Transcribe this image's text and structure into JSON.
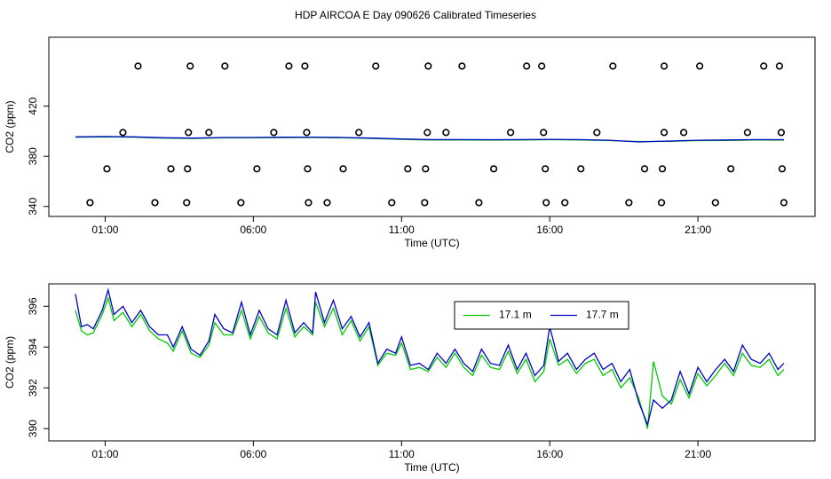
{
  "chart_data": [
    {
      "type": "line",
      "title": "HDP AIRCOA E  Day 090626  Calibrated Timeseries",
      "xlabel": "Time (UTC)",
      "ylabel": "CO2 (ppm)",
      "xlim": [
        -0.9,
        24.95
      ],
      "ylim": [
        332,
        475
      ],
      "xticks": [
        {
          "value": 1,
          "label": "01:00"
        },
        {
          "value": 6,
          "label": "06:00"
        },
        {
          "value": 11,
          "label": "11:00"
        },
        {
          "value": 16,
          "label": "16:00"
        },
        {
          "value": 21,
          "label": "21:00"
        }
      ],
      "yticks": [
        340,
        380,
        420
      ],
      "x": [
        0,
        1,
        2,
        3,
        4,
        5,
        6,
        7,
        8,
        9,
        10,
        11,
        12,
        13,
        14,
        15,
        16,
        17,
        18,
        19,
        20,
        21,
        22,
        23,
        23.9
      ],
      "series": [
        {
          "color": "#00cc00",
          "values": [
            395.2,
            395.5,
            395.2,
            394.5,
            394.2,
            394.7,
            394.7,
            394.9,
            395.0,
            394.7,
            394.2,
            393.5,
            393.0,
            393.0,
            392.9,
            393.0,
            393.2,
            393.0,
            392.5,
            391.8,
            391.9,
            392.5,
            392.7,
            393.0,
            392.9
          ]
        },
        {
          "color": "#0000cc",
          "values": [
            395.5,
            395.8,
            395.5,
            394.8,
            394.5,
            395.0,
            395.0,
            395.2,
            395.3,
            395.0,
            394.5,
            393.8,
            393.3,
            393.3,
            393.2,
            393.3,
            393.5,
            393.3,
            392.8,
            391.5,
            392.2,
            392.8,
            393.0,
            393.3,
            393.2
          ]
        },
        {
          "type": "scatter",
          "color": "#000000",
          "x": [
            2.11,
            3.87,
            5.04,
            7.2,
            7.74,
            10.13,
            11.9,
            13.04,
            15.22,
            15.73,
            18.13,
            19.86,
            21.06,
            23.22,
            23.75,
            1.6,
            3.81,
            4.5,
            6.69,
            7.8,
            9.56,
            11.87,
            12.5,
            14.68,
            15.79,
            17.59,
            19.86,
            20.52,
            22.67,
            23.81,
            1.06,
            3.22,
            3.78,
            6.12,
            7.83,
            9.03,
            11.21,
            11.81,
            14.11,
            15.85,
            17.05,
            19.2,
            19.8,
            22.11,
            23.84,
            0.49,
            2.68,
            3.75,
            5.58,
            7.86,
            8.49,
            10.67,
            11.78,
            13.61,
            15.88,
            16.51,
            18.67,
            19.77,
            21.59,
            23.9
          ],
          "values": [
            452,
            452,
            452,
            452,
            452,
            452,
            452,
            452,
            452,
            452,
            452,
            452,
            452,
            452,
            452,
            399,
            399,
            399,
            399,
            399,
            399,
            399,
            399,
            399,
            399,
            399,
            399,
            399,
            399,
            399,
            370,
            370,
            370,
            370,
            370,
            370,
            370,
            370,
            370,
            370,
            370,
            370,
            370,
            370,
            370,
            343,
            343,
            343,
            343,
            343,
            343,
            343,
            343,
            343,
            343,
            343,
            343,
            343,
            343,
            343
          ]
        }
      ]
    },
    {
      "type": "line",
      "xlabel": "Time (UTC)",
      "ylabel": "CO2 (ppm)",
      "xlim": [
        -0.9,
        24.95
      ],
      "ylim": [
        389.4,
        397.1
      ],
      "xticks": [
        {
          "value": 1,
          "label": "01:00"
        },
        {
          "value": 6,
          "label": "06:00"
        },
        {
          "value": 11,
          "label": "11:00"
        },
        {
          "value": 16,
          "label": "16:00"
        },
        {
          "value": 21,
          "label": "21:00"
        }
      ],
      "yticks": [
        390,
        392,
        394,
        396
      ],
      "legend": "top",
      "x": [
        0,
        0.2,
        0.4,
        0.6,
        0.9,
        1.1,
        1.3,
        1.6,
        1.9,
        2.2,
        2.5,
        2.8,
        3.1,
        3.3,
        3.6,
        3.9,
        4.2,
        4.5,
        4.7,
        5.0,
        5.3,
        5.6,
        5.9,
        6.2,
        6.5,
        6.8,
        7.1,
        7.4,
        7.7,
        8.0,
        8.1,
        8.4,
        8.7,
        9.0,
        9.3,
        9.6,
        9.9,
        10.2,
        10.5,
        10.8,
        11.0,
        11.3,
        11.6,
        11.9,
        12.2,
        12.5,
        12.8,
        13.1,
        13.4,
        13.7,
        14.0,
        14.3,
        14.6,
        14.9,
        15.2,
        15.5,
        15.8,
        16.0,
        16.3,
        16.6,
        16.9,
        17.2,
        17.5,
        17.8,
        18.1,
        18.4,
        18.7,
        19.0,
        19.3,
        19.5,
        19.8,
        20.1,
        20.4,
        20.7,
        21.0,
        21.3,
        21.6,
        21.9,
        22.2,
        22.5,
        22.8,
        23.1,
        23.4,
        23.7,
        23.9
      ],
      "series": [
        {
          "name": "17.1 m",
          "color": "#00cc00",
          "values": [
            395.8,
            394.8,
            394.6,
            394.7,
            395.6,
            396.4,
            395.3,
            395.7,
            395.0,
            395.6,
            394.8,
            394.4,
            394.2,
            393.8,
            394.8,
            393.7,
            393.5,
            394.1,
            395.2,
            394.6,
            394.6,
            395.8,
            394.4,
            395.5,
            394.7,
            394.4,
            395.9,
            394.5,
            395.0,
            394.6,
            396.2,
            395.0,
            395.9,
            394.6,
            395.3,
            394.3,
            395.0,
            393.1,
            393.7,
            393.6,
            394.2,
            392.9,
            393.0,
            392.8,
            393.5,
            393.0,
            393.7,
            393.0,
            392.6,
            393.6,
            393.0,
            392.9,
            393.8,
            392.7,
            393.4,
            392.3,
            392.8,
            394.4,
            393.1,
            393.4,
            392.7,
            393.2,
            393.4,
            392.6,
            392.9,
            392.0,
            392.5,
            391.5,
            390.0,
            393.3,
            391.6,
            391.2,
            392.4,
            391.5,
            392.7,
            392.1,
            392.6,
            393.2,
            392.6,
            393.7,
            393.1,
            393.0,
            393.4,
            392.6,
            392.9
          ]
        },
        {
          "name": "17.7 m",
          "color": "#0000cc",
          "values": [
            396.6,
            395.0,
            395.1,
            394.9,
            395.8,
            396.8,
            395.6,
            396.0,
            395.2,
            395.8,
            395.0,
            394.6,
            394.6,
            394.0,
            395.0,
            393.9,
            393.6,
            394.3,
            395.6,
            394.9,
            394.7,
            396.2,
            394.6,
            395.8,
            394.9,
            394.6,
            396.3,
            394.7,
            395.2,
            394.7,
            396.7,
            395.2,
            396.3,
            394.9,
            395.5,
            394.5,
            395.2,
            393.2,
            393.9,
            393.7,
            394.5,
            393.1,
            393.2,
            392.9,
            393.7,
            393.2,
            393.9,
            393.2,
            392.8,
            393.9,
            393.2,
            393.1,
            394.1,
            392.9,
            393.7,
            392.6,
            393.1,
            395.0,
            393.3,
            393.7,
            392.9,
            393.4,
            393.7,
            392.9,
            393.2,
            392.3,
            392.9,
            391.3,
            390.2,
            391.4,
            391.0,
            391.4,
            392.8,
            391.7,
            393.0,
            392.3,
            392.9,
            393.4,
            392.8,
            394.1,
            393.4,
            393.2,
            393.7,
            392.9,
            393.2
          ]
        }
      ]
    }
  ]
}
